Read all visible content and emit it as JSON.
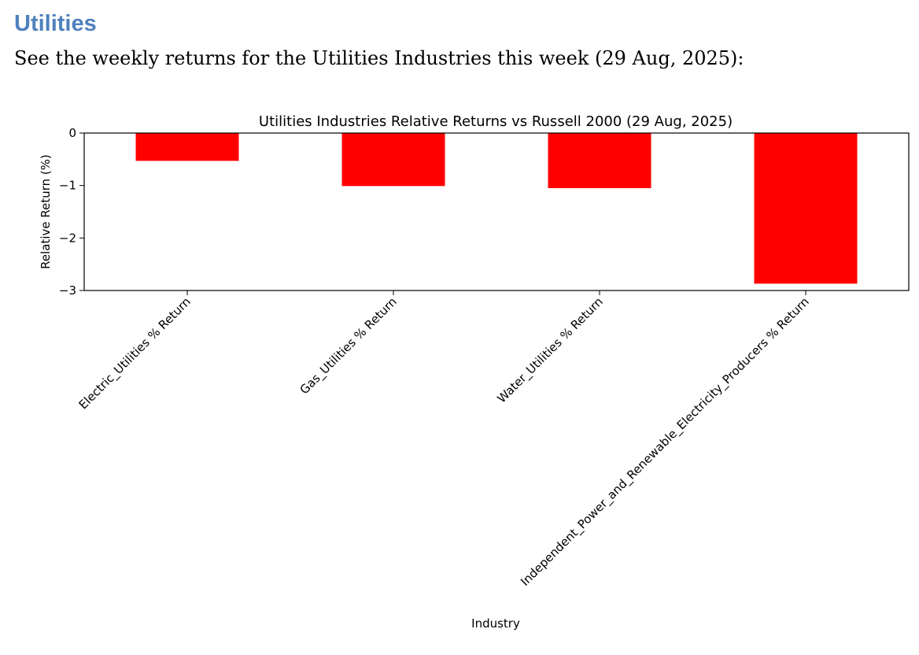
{
  "page": {
    "heading": "Utilities",
    "intro": "See the weekly returns for the Utilities Industries this week (29 Aug, 2025):"
  },
  "colors": {
    "heading": "#4f81bd",
    "bar": "#ff0000"
  },
  "chart_data": {
    "type": "bar",
    "title": "Utilities Industries Relative Returns vs Russell 2000 (29 Aug, 2025)",
    "xlabel": "Industry",
    "ylabel": "Relative Return (%)",
    "categories": [
      "Electric_Utilities % Return",
      "Gas_Utilities % Return",
      "Water_Utilities % Return",
      "Independent_Power_and_Renewable_Electricity_Producers % Return"
    ],
    "values": [
      -0.53,
      -1.01,
      -1.05,
      -2.87
    ],
    "ylim": [
      -3,
      0
    ],
    "yticks": [
      0,
      -1,
      -2,
      -3
    ],
    "ytick_labels": [
      "0",
      "−1",
      "−2",
      "−3"
    ],
    "grid": false,
    "legend": "none"
  }
}
